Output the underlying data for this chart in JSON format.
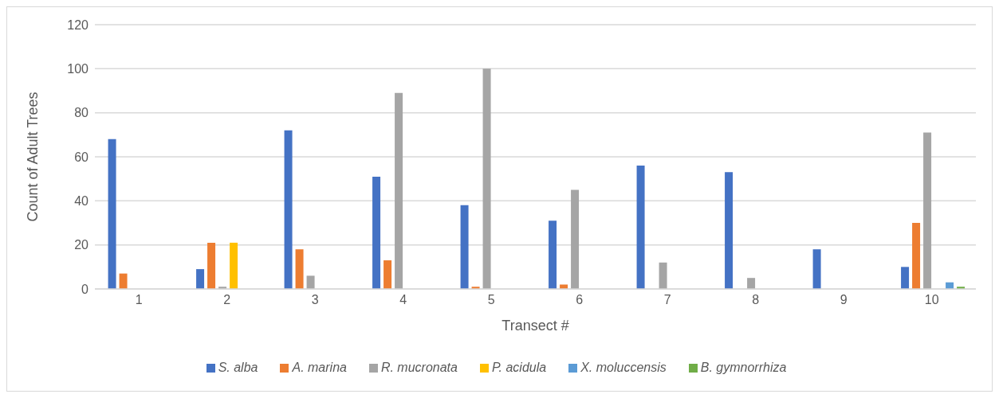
{
  "chart_data": {
    "type": "bar",
    "xlabel": "Transect #",
    "ylabel": "Count of Adult Trees",
    "categories": [
      "1",
      "2",
      "3",
      "4",
      "5",
      "6",
      "7",
      "8",
      "9",
      "10"
    ],
    "series": [
      {
        "name": "S. alba",
        "color": "#4472c4",
        "values": [
          68,
          9,
          72,
          51,
          38,
          31,
          56,
          53,
          18,
          10
        ]
      },
      {
        "name": "A. marina",
        "color": "#ed7d31",
        "values": [
          7,
          21,
          18,
          13,
          1,
          2,
          0,
          0,
          0,
          30
        ]
      },
      {
        "name": "R. mucronata",
        "color": "#a5a5a5",
        "values": [
          0,
          1,
          6,
          89,
          100,
          45,
          12,
          5,
          0,
          71
        ]
      },
      {
        "name": "P. acidula",
        "color": "#ffc000",
        "values": [
          0,
          21,
          0,
          0,
          0,
          0,
          0,
          0,
          0,
          0
        ]
      },
      {
        "name": "X. moluccensis",
        "color": "#5b9bd5",
        "values": [
          0,
          0,
          0,
          0,
          0,
          0,
          0,
          0,
          0,
          3
        ]
      },
      {
        "name": "B. gymnorrhiza",
        "color": "#70ad47",
        "values": [
          0,
          0,
          0,
          0,
          0,
          0,
          0,
          0,
          0,
          1
        ]
      }
    ],
    "ylim": [
      0,
      120
    ],
    "yticks": [
      0,
      20,
      40,
      60,
      80,
      100,
      120
    ],
    "grid": "y",
    "legend": "bottom"
  }
}
